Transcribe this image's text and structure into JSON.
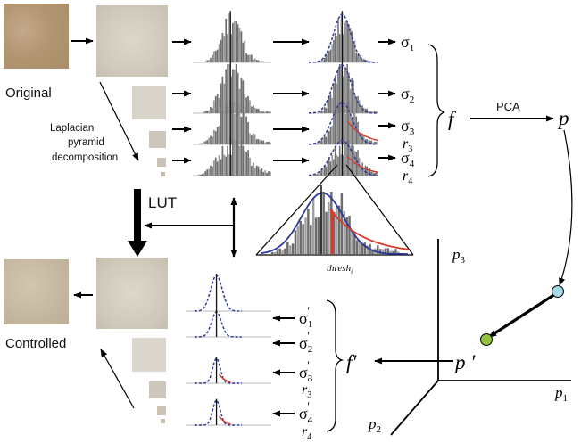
{
  "labels": {
    "original": "Original",
    "controlled": "Controlled",
    "laplacian": [
      "Laplacian",
      "pyramid",
      "decomposition"
    ],
    "lut": "LUT",
    "pca": "PCA",
    "thresh": "thresh",
    "thresh_sub": "i"
  },
  "symbols": {
    "sigma": "σ",
    "r": "r",
    "f": "f",
    "f_prime": "f′",
    "p": "p",
    "p_prime": "p ′",
    "prime": "′",
    "sub1": "1",
    "sub2": "2",
    "sub3": "3",
    "sub4": "4"
  },
  "axes": {
    "p1": "p",
    "p1_sub": "1",
    "p2": "p",
    "p2_sub": "2",
    "p3": "p",
    "p3_sub": "3"
  },
  "colors": {
    "texture_original": "#b79a74",
    "texture_pyramid": "#d6d0c4",
    "texture_controlled": "#c9bca4",
    "gaussian_blue": "#2c3a9a",
    "tail_red": "#d8392b",
    "pca_point": "#a6d9e8",
    "projected_point": "#8fc43a"
  }
}
